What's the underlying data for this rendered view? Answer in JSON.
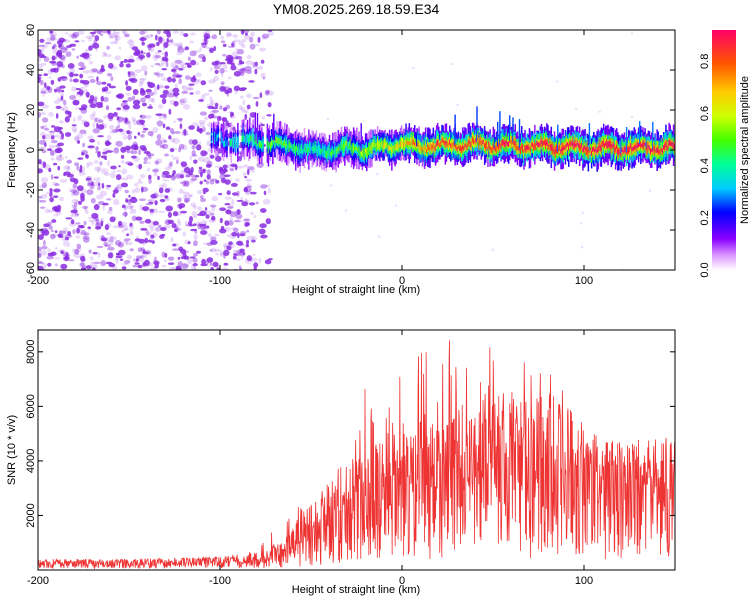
{
  "chart_data": [
    {
      "type": "heatmap",
      "title": "YM08.2025.269.18.59.E34",
      "xlabel": "Height of straight line (km)",
      "ylabel": "Frequency (Hz)",
      "xlim": [
        -200,
        150
      ],
      "ylim": [
        -60,
        60
      ],
      "xticks": [
        -200,
        -100,
        0,
        100
      ],
      "xtick_labels": [
        "-200",
        "-100",
        "0",
        "100"
      ],
      "yticks": [
        -60,
        -40,
        -20,
        0,
        20,
        40,
        60
      ],
      "ytick_labels": [
        "-60",
        "-40",
        "-20",
        "0",
        "20",
        "40",
        "60"
      ],
      "noise_region_x": [
        -200,
        -72
      ],
      "signal_band": {
        "x": [
          -105,
          -80,
          -70,
          -60,
          -50,
          -40,
          -30,
          -20,
          -10,
          0,
          10,
          20,
          40,
          60,
          80,
          100,
          120,
          150
        ],
        "center_hz": [
          5,
          4,
          3,
          2,
          -1,
          0,
          1,
          0,
          2,
          3,
          2,
          2,
          3,
          2,
          2,
          1,
          1,
          1
        ],
        "peak_amplitude": [
          0.3,
          0.45,
          0.5,
          0.45,
          0.4,
          0.45,
          0.5,
          0.55,
          0.6,
          0.65,
          0.75,
          0.8,
          0.82,
          0.85,
          0.88,
          0.9,
          0.92,
          0.9
        ]
      },
      "colorbar": {
        "label": "Normalized spectral amplitude",
        "range": [
          0,
          0.92
        ],
        "ticks": [
          0.0,
          0.2,
          0.4,
          0.6,
          0.8
        ],
        "tick_labels": [
          "0.0",
          "0.2",
          "0.4",
          "0.6",
          "0.8"
        ]
      },
      "grid": false
    },
    {
      "type": "line",
      "xlabel": "Height of straight line (km)",
      "ylabel": "SNR (10 * v/v)",
      "xlim": [
        -200,
        150
      ],
      "ylim": [
        0,
        8800
      ],
      "xticks": [
        -200,
        -100,
        0,
        100
      ],
      "xtick_labels": [
        "-200",
        "-100",
        "0",
        "100"
      ],
      "yticks": [
        2000,
        4000,
        6000,
        8000
      ],
      "ytick_labels": [
        "2000",
        "4000",
        "6000",
        "8000"
      ],
      "color": "#ee3333",
      "envelope": {
        "x": [
          -200,
          -150,
          -100,
          -80,
          -70,
          -60,
          -50,
          -40,
          -30,
          -20,
          -10,
          0,
          10,
          20,
          30,
          40,
          50,
          60,
          70,
          80,
          90,
          100,
          110,
          120,
          130,
          140,
          150
        ],
        "typical": [
          150,
          150,
          200,
          300,
          600,
          1000,
          1500,
          2000,
          2300,
          2600,
          2900,
          3000,
          3400,
          3800,
          4000,
          4300,
          4200,
          4100,
          4000,
          3800,
          3700,
          3600,
          3500,
          3500,
          3600,
          3600,
          3700
        ],
        "max": [
          400,
          400,
          500,
          700,
          1600,
          2300,
          2800,
          3800,
          4200,
          6800,
          5800,
          7500,
          8200,
          8300,
          8600,
          8400,
          8500,
          8300,
          7900,
          7500,
          6400,
          5500,
          5000,
          4800,
          4800,
          5000,
          4700
        ]
      },
      "grid": false
    }
  ],
  "colors": {
    "line": "#ee3333",
    "noise": "#8a2be2",
    "background": "#ffffff"
  }
}
